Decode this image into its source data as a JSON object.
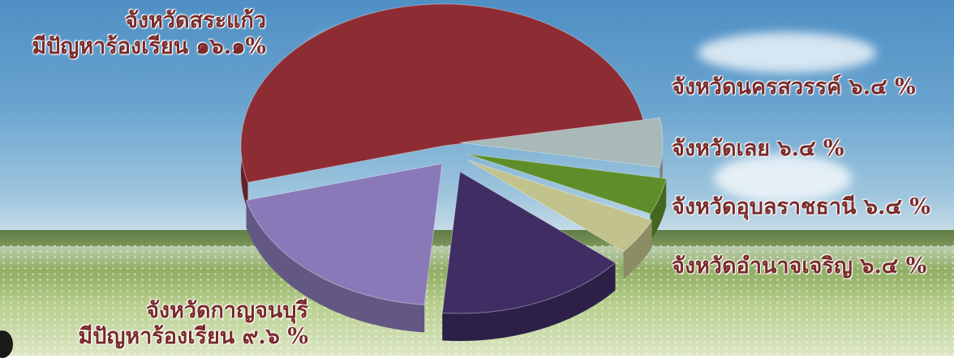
{
  "colors": {
    "label_text": "#7a2a2a"
  },
  "chart_data": {
    "type": "pie",
    "title": "",
    "slices": [
      {
        "label": "จังหวัดสระแก้ว",
        "percent_text": "มีปัญหาร้องเรียน ๑๖.๑%",
        "value": 16.1,
        "color": "#8e2c34"
      },
      {
        "label": "จังหวัดนครสวรรค์",
        "percent_text": "๖.๔ %",
        "value": 6.4,
        "color": "#a9b8b8"
      },
      {
        "label": "จังหวัดเลย",
        "percent_text": "๖.๔ %",
        "value": 6.4,
        "color": "#5e8e2a"
      },
      {
        "label": "จังหวัดอุบลราชธานี",
        "percent_text": "๖.๔ %",
        "value": 6.4,
        "color": "#c2c28c"
      },
      {
        "label": "จังหวัดอำนาจเจริญ",
        "percent_text": "๖.๔ %",
        "value": 6.4,
        "color": "#3f2d63"
      },
      {
        "label": "จังหวัดกาญจนบุรี",
        "percent_text": "มีปัญหาร้องเรียน ๙.๖ %",
        "value": 9.6,
        "color": "#8a79b8"
      }
    ]
  },
  "labels": {
    "sakaeo_line1": "จังหวัดสระแก้ว",
    "sakaeo_line2": "มีปัญหาร้องเรียน ๑๖.๑%",
    "nakhon": "จังหวัดนครสวรรค์ ๖.๔ %",
    "loei": "จังหวัดเลย ๖.๔ %",
    "ubon": "จังหวัดอุบลราชธานี ๖.๔ %",
    "amnat": "จังหวัดอำนาจเจริญ ๖.๔ %",
    "kanchana_line1": "จังหวัดกาญจนบุรี",
    "kanchana_line2": "มีปัญหาร้องเรียน ๙.๖ %"
  }
}
